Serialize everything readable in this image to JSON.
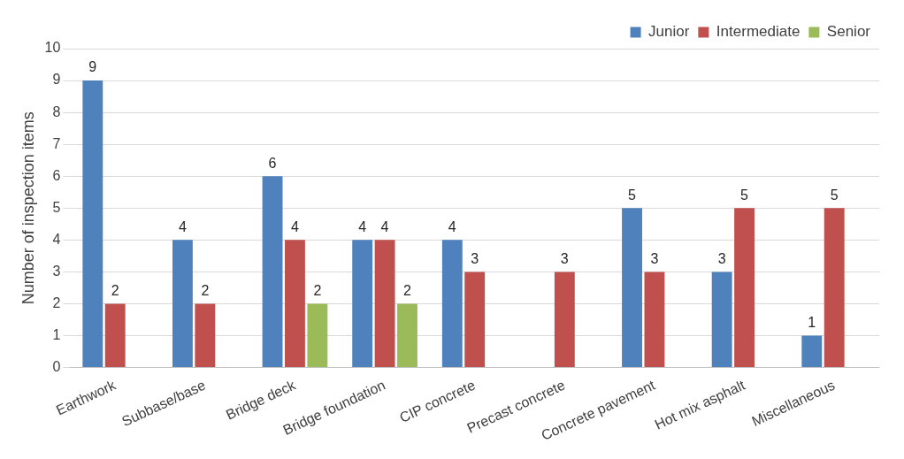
{
  "chart_data": {
    "type": "bar",
    "ylabel": "Number of inspection items",
    "categories": [
      "Earthwork",
      "Subbase/base",
      "Bridge deck",
      "Bridge foundation",
      "CIP concrete",
      "Precast concrete",
      "Concrete pavement",
      "Hot mix asphalt",
      "Miscellaneous"
    ],
    "series": [
      {
        "name": "Junior",
        "color": "#4f81bd",
        "values": [
          9,
          4,
          6,
          4,
          4,
          null,
          5,
          3,
          1
        ]
      },
      {
        "name": "Intermediate",
        "color": "#c0504d",
        "values": [
          2,
          2,
          4,
          4,
          3,
          3,
          3,
          5,
          5
        ]
      },
      {
        "name": "Senior",
        "color": "#9bbb59",
        "values": [
          null,
          null,
          2,
          2,
          null,
          null,
          null,
          null,
          null
        ]
      }
    ],
    "ylim": [
      0,
      10
    ],
    "yticks": [
      0,
      1,
      2,
      3,
      4,
      5,
      6,
      7,
      8,
      9,
      10
    ],
    "grid": "y",
    "legend": "top right",
    "data_labels": true
  }
}
